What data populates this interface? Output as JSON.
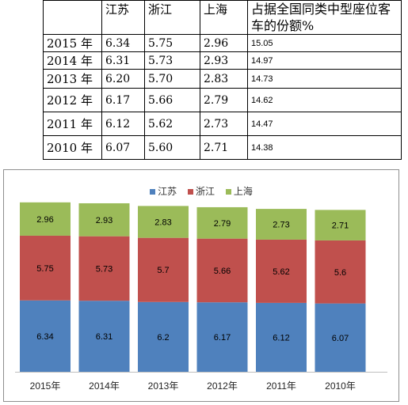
{
  "table": {
    "headers": [
      "",
      "江苏",
      "浙江",
      "上海",
      "占据全国同类中型座位客车的份额%"
    ],
    "rows": [
      {
        "year": "2015 年",
        "js": "6.34",
        "zj": "5.75",
        "sh": "2.96",
        "share": "15.05"
      },
      {
        "year": "2014 年",
        "js": "6.31",
        "zj": "5.73",
        "sh": "2.93",
        "share": "14.97"
      },
      {
        "year": "2013 年",
        "js": "6.20",
        "zj": "5.70",
        "sh": "2.83",
        "share": "14.73"
      },
      {
        "year": "2012 年",
        "js": "6.17",
        "zj": "5.66",
        "sh": "2.79",
        "share": "14.62"
      },
      {
        "year": "2011 年",
        "js": "6.12",
        "zj": "5.62",
        "sh": "2.73",
        "share": "14.47"
      },
      {
        "year": "2010 年",
        "js": "6.07",
        "zj": "5.60",
        "sh": "2.71",
        "share": "14.38"
      }
    ]
  },
  "chart_data": {
    "type": "bar",
    "stacked": true,
    "categories": [
      "2015年",
      "2014年",
      "2013年",
      "2012年",
      "2011年",
      "2010年"
    ],
    "series": [
      {
        "name": "江苏",
        "color": "#4F81BD",
        "values": [
          6.34,
          6.31,
          6.2,
          6.17,
          6.12,
          6.07
        ]
      },
      {
        "name": "浙江",
        "color": "#C0504D",
        "values": [
          5.75,
          5.73,
          5.7,
          5.66,
          5.62,
          5.6
        ]
      },
      {
        "name": "上海",
        "color": "#9BBB59",
        "values": [
          2.96,
          2.93,
          2.83,
          2.79,
          2.73,
          2.71
        ]
      }
    ],
    "legend_position": "top",
    "grid": false,
    "ylim": [
      0,
      16
    ]
  }
}
